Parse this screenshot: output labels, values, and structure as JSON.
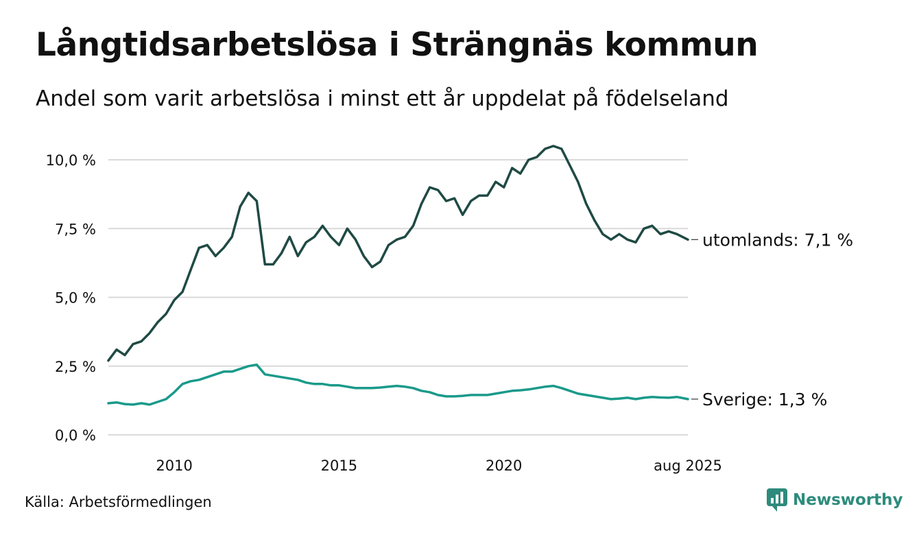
{
  "title": "Långtidsarbetslösa i Strängnäs kommun",
  "subtitle": "Andel som varit arbetslösa i minst ett år uppdelat på födelseland",
  "source": "Källa: Arbetsförmedlingen",
  "brand": "Newsworthy",
  "colors": {
    "utomlands": "#1f4a44",
    "sverige": "#1a9a8a",
    "grid": "#d9d9d9",
    "brand": "#2e8b7c"
  },
  "chart_data": {
    "type": "line",
    "xlabel": "",
    "ylabel": "",
    "ylim": [
      0,
      10.5
    ],
    "xlim": [
      "2008-01",
      "2025-08"
    ],
    "y_ticks": [
      {
        "value": 0,
        "label": "0,0 %"
      },
      {
        "value": 2.5,
        "label": "2,5 %"
      },
      {
        "value": 5,
        "label": "5,0 %"
      },
      {
        "value": 7.5,
        "label": "7,5 %"
      },
      {
        "value": 10,
        "label": "10,0 %"
      }
    ],
    "x_ticks": [
      {
        "value": "2010-01",
        "label": "2010"
      },
      {
        "value": "2015-01",
        "label": "2015"
      },
      {
        "value": "2020-01",
        "label": "2020"
      },
      {
        "value": "2025-08",
        "label": "aug 2025"
      }
    ],
    "grid": "horizontal",
    "series": [
      {
        "key": "utomlands",
        "label": "utomlands: 7,1 %",
        "points": [
          [
            "2008-01",
            2.7
          ],
          [
            "2008-04",
            3.1
          ],
          [
            "2008-07",
            2.9
          ],
          [
            "2008-10",
            3.3
          ],
          [
            "2009-01",
            3.4
          ],
          [
            "2009-04",
            3.7
          ],
          [
            "2009-07",
            4.1
          ],
          [
            "2009-10",
            4.4
          ],
          [
            "2010-01",
            4.9
          ],
          [
            "2010-04",
            5.2
          ],
          [
            "2010-07",
            6.0
          ],
          [
            "2010-10",
            6.8
          ],
          [
            "2011-01",
            6.9
          ],
          [
            "2011-04",
            6.5
          ],
          [
            "2011-07",
            6.8
          ],
          [
            "2011-10",
            7.2
          ],
          [
            "2012-01",
            8.3
          ],
          [
            "2012-04",
            8.8
          ],
          [
            "2012-07",
            8.5
          ],
          [
            "2012-10",
            6.2
          ],
          [
            "2013-01",
            6.2
          ],
          [
            "2013-04",
            6.6
          ],
          [
            "2013-07",
            7.2
          ],
          [
            "2013-10",
            6.5
          ],
          [
            "2014-01",
            7.0
          ],
          [
            "2014-04",
            7.2
          ],
          [
            "2014-07",
            7.6
          ],
          [
            "2014-10",
            7.2
          ],
          [
            "2015-01",
            6.9
          ],
          [
            "2015-04",
            7.5
          ],
          [
            "2015-07",
            7.1
          ],
          [
            "2015-10",
            6.5
          ],
          [
            "2016-01",
            6.1
          ],
          [
            "2016-04",
            6.3
          ],
          [
            "2016-07",
            6.9
          ],
          [
            "2016-10",
            7.1
          ],
          [
            "2017-01",
            7.2
          ],
          [
            "2017-04",
            7.6
          ],
          [
            "2017-07",
            8.4
          ],
          [
            "2017-10",
            9.0
          ],
          [
            "2018-01",
            8.9
          ],
          [
            "2018-04",
            8.5
          ],
          [
            "2018-07",
            8.6
          ],
          [
            "2018-10",
            8.0
          ],
          [
            "2019-01",
            8.5
          ],
          [
            "2019-04",
            8.7
          ],
          [
            "2019-07",
            8.7
          ],
          [
            "2019-10",
            9.2
          ],
          [
            "2020-01",
            9.0
          ],
          [
            "2020-04",
            9.7
          ],
          [
            "2020-07",
            9.5
          ],
          [
            "2020-10",
            10.0
          ],
          [
            "2021-01",
            10.1
          ],
          [
            "2021-04",
            10.4
          ],
          [
            "2021-07",
            10.5
          ],
          [
            "2021-10",
            10.4
          ],
          [
            "2022-01",
            9.8
          ],
          [
            "2022-04",
            9.2
          ],
          [
            "2022-07",
            8.4
          ],
          [
            "2022-10",
            7.8
          ],
          [
            "2023-01",
            7.3
          ],
          [
            "2023-04",
            7.1
          ],
          [
            "2023-07",
            7.3
          ],
          [
            "2023-10",
            7.1
          ],
          [
            "2024-01",
            7.0
          ],
          [
            "2024-04",
            7.5
          ],
          [
            "2024-07",
            7.6
          ],
          [
            "2024-10",
            7.3
          ],
          [
            "2025-01",
            7.4
          ],
          [
            "2025-04",
            7.3
          ],
          [
            "2025-08",
            7.1
          ]
        ]
      },
      {
        "key": "sverige",
        "label": "Sverige: 1,3 %",
        "points": [
          [
            "2008-01",
            1.15
          ],
          [
            "2008-04",
            1.18
          ],
          [
            "2008-07",
            1.12
          ],
          [
            "2008-10",
            1.1
          ],
          [
            "2009-01",
            1.15
          ],
          [
            "2009-04",
            1.1
          ],
          [
            "2009-07",
            1.2
          ],
          [
            "2009-10",
            1.3
          ],
          [
            "2010-01",
            1.55
          ],
          [
            "2010-04",
            1.85
          ],
          [
            "2010-07",
            1.95
          ],
          [
            "2010-10",
            2.0
          ],
          [
            "2011-01",
            2.1
          ],
          [
            "2011-04",
            2.2
          ],
          [
            "2011-07",
            2.3
          ],
          [
            "2011-10",
            2.3
          ],
          [
            "2012-01",
            2.4
          ],
          [
            "2012-04",
            2.5
          ],
          [
            "2012-07",
            2.55
          ],
          [
            "2012-10",
            2.2
          ],
          [
            "2013-01",
            2.15
          ],
          [
            "2013-04",
            2.1
          ],
          [
            "2013-07",
            2.05
          ],
          [
            "2013-10",
            2.0
          ],
          [
            "2014-01",
            1.9
          ],
          [
            "2014-04",
            1.85
          ],
          [
            "2014-07",
            1.85
          ],
          [
            "2014-10",
            1.8
          ],
          [
            "2015-01",
            1.8
          ],
          [
            "2015-04",
            1.75
          ],
          [
            "2015-07",
            1.7
          ],
          [
            "2015-10",
            1.7
          ],
          [
            "2016-01",
            1.7
          ],
          [
            "2016-04",
            1.72
          ],
          [
            "2016-07",
            1.75
          ],
          [
            "2016-10",
            1.78
          ],
          [
            "2017-01",
            1.75
          ],
          [
            "2017-04",
            1.7
          ],
          [
            "2017-07",
            1.6
          ],
          [
            "2017-10",
            1.55
          ],
          [
            "2018-01",
            1.45
          ],
          [
            "2018-04",
            1.4
          ],
          [
            "2018-07",
            1.4
          ],
          [
            "2018-10",
            1.42
          ],
          [
            "2019-01",
            1.45
          ],
          [
            "2019-04",
            1.45
          ],
          [
            "2019-07",
            1.45
          ],
          [
            "2019-10",
            1.5
          ],
          [
            "2020-01",
            1.55
          ],
          [
            "2020-04",
            1.6
          ],
          [
            "2020-07",
            1.62
          ],
          [
            "2020-10",
            1.65
          ],
          [
            "2021-01",
            1.7
          ],
          [
            "2021-04",
            1.75
          ],
          [
            "2021-07",
            1.78
          ],
          [
            "2021-10",
            1.7
          ],
          [
            "2022-01",
            1.6
          ],
          [
            "2022-04",
            1.5
          ],
          [
            "2022-07",
            1.45
          ],
          [
            "2022-10",
            1.4
          ],
          [
            "2023-01",
            1.35
          ],
          [
            "2023-04",
            1.3
          ],
          [
            "2023-07",
            1.32
          ],
          [
            "2023-10",
            1.35
          ],
          [
            "2024-01",
            1.3
          ],
          [
            "2024-04",
            1.35
          ],
          [
            "2024-07",
            1.38
          ],
          [
            "2024-10",
            1.36
          ],
          [
            "2025-01",
            1.35
          ],
          [
            "2025-04",
            1.38
          ],
          [
            "2025-08",
            1.3
          ]
        ]
      }
    ]
  }
}
